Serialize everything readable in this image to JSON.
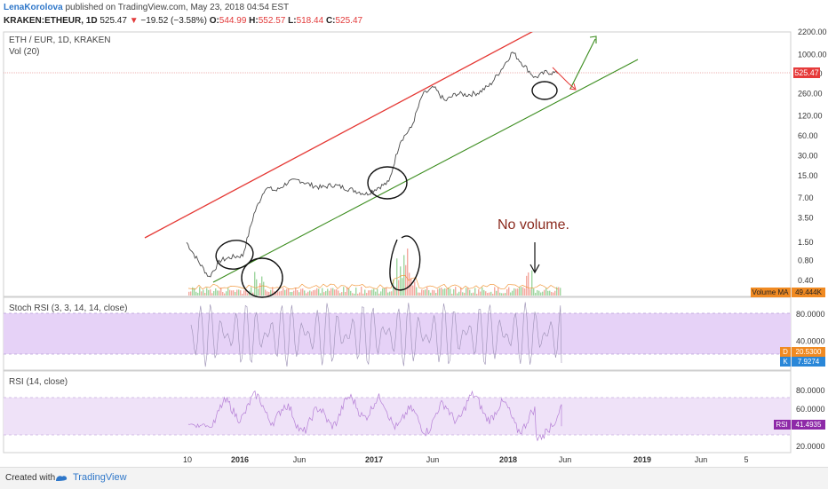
{
  "header": {
    "author": "LenaKorolova",
    "published": "published on TradingView.com, May 23, 2018 04:54 EST",
    "symbol": "KRAKEN:ETHEUR, 1D",
    "last": "525.47",
    "change": "−19.52 (−3.58%)",
    "open_label": "O:",
    "open": "544.99",
    "high_label": "H:",
    "high": "552.57",
    "low_label": "L:",
    "low": "518.44",
    "close_label": "C:",
    "close": "525.47"
  },
  "panes": {
    "main_title": "ETH / EUR, 1D, KRAKEN",
    "vol_title": "Vol (20)",
    "stoch_title": "Stoch RSI (3, 3, 14, 14, close)",
    "rsi_title": "RSI (14, close)"
  },
  "badges": {
    "price": "525.47",
    "volume_ma_label": "Volume MA",
    "volume_ma_value": "49.444K",
    "stoch_d_label": "D",
    "stoch_d_value": "20.5300",
    "stoch_k_label": "K",
    "stoch_k_value": "7.9274",
    "rsi_label": "RSI",
    "rsi_value": "41.4935"
  },
  "annotation": {
    "text": "No volume."
  },
  "footer": {
    "created": "Created with",
    "brand": "TradingView"
  },
  "colors": {
    "price_line": "#4a4a4a",
    "upper_channel": "#e53935",
    "lower_channel": "#3c8d1f",
    "stoch_band": "#e6d2f7",
    "rsi_band": "#efe2f8",
    "rsi_line": "#b57fd6",
    "stoch_line": "#9a8fb3",
    "badge_orange": "#f08a22",
    "badge_blue": "#2a87d8",
    "badge_purple": "#8e2aa8",
    "badge_red": "#e63a3a"
  },
  "chart_data": [
    {
      "type": "line",
      "pane": "price",
      "scale": "log",
      "x_tick_labels": [
        "10",
        "2016",
        "Jun",
        "2017",
        "Jun",
        "2018",
        "Jun",
        "2019",
        "Jun",
        "5"
      ],
      "y_tick_labels": [
        "2200.00",
        "1000.00",
        "520.00",
        "260.00",
        "120.00",
        "60.00",
        "30.00",
        "15.00",
        "7.00",
        "3.50",
        "1.50",
        "0.80",
        "0.40"
      ],
      "x": [
        "2015-08",
        "2015-09",
        "2015-10",
        "2015-11",
        "2015-12",
        "2016-01",
        "2016-02",
        "2016-03",
        "2016-04",
        "2016-05",
        "2016-06",
        "2016-07",
        "2016-08",
        "2016-09",
        "2016-10",
        "2016-11",
        "2016-12",
        "2017-01",
        "2017-02",
        "2017-03",
        "2017-04",
        "2017-05",
        "2017-06",
        "2017-07",
        "2017-08",
        "2017-09",
        "2017-10",
        "2017-11",
        "2017-12",
        "2018-01",
        "2018-02",
        "2018-03",
        "2018-04",
        "2018-05"
      ],
      "values": [
        1.5,
        0.8,
        0.45,
        0.8,
        0.9,
        0.95,
        4,
        10,
        9,
        12,
        13,
        11,
        10,
        11,
        10,
        9,
        8,
        10,
        12,
        50,
        80,
        250,
        320,
        200,
        260,
        250,
        270,
        350,
        600,
        1100,
        700,
        450,
        550,
        525
      ],
      "channel_upper": {
        "from": [
          "2015-09",
          3.5
        ],
        "to": [
          "2018-06",
          2200
        ]
      },
      "channel_lower": {
        "from": [
          "2015-11",
          0.4
        ],
        "to": [
          "2019-01",
          900
        ]
      }
    },
    {
      "type": "bar",
      "pane": "volume",
      "note": "No volume.",
      "volume_ma": "49.444K"
    },
    {
      "type": "line",
      "pane": "stoch_rsi",
      "y_tick_labels": [
        "80.0000",
        "40.0000"
      ],
      "band": [
        20,
        80
      ],
      "d": 20.53,
      "k": 7.9274
    },
    {
      "type": "line",
      "pane": "rsi",
      "y_tick_labels": [
        "80.0000",
        "60.0000",
        "20.0000"
      ],
      "band": [
        30,
        70
      ],
      "value": 41.4935
    }
  ]
}
